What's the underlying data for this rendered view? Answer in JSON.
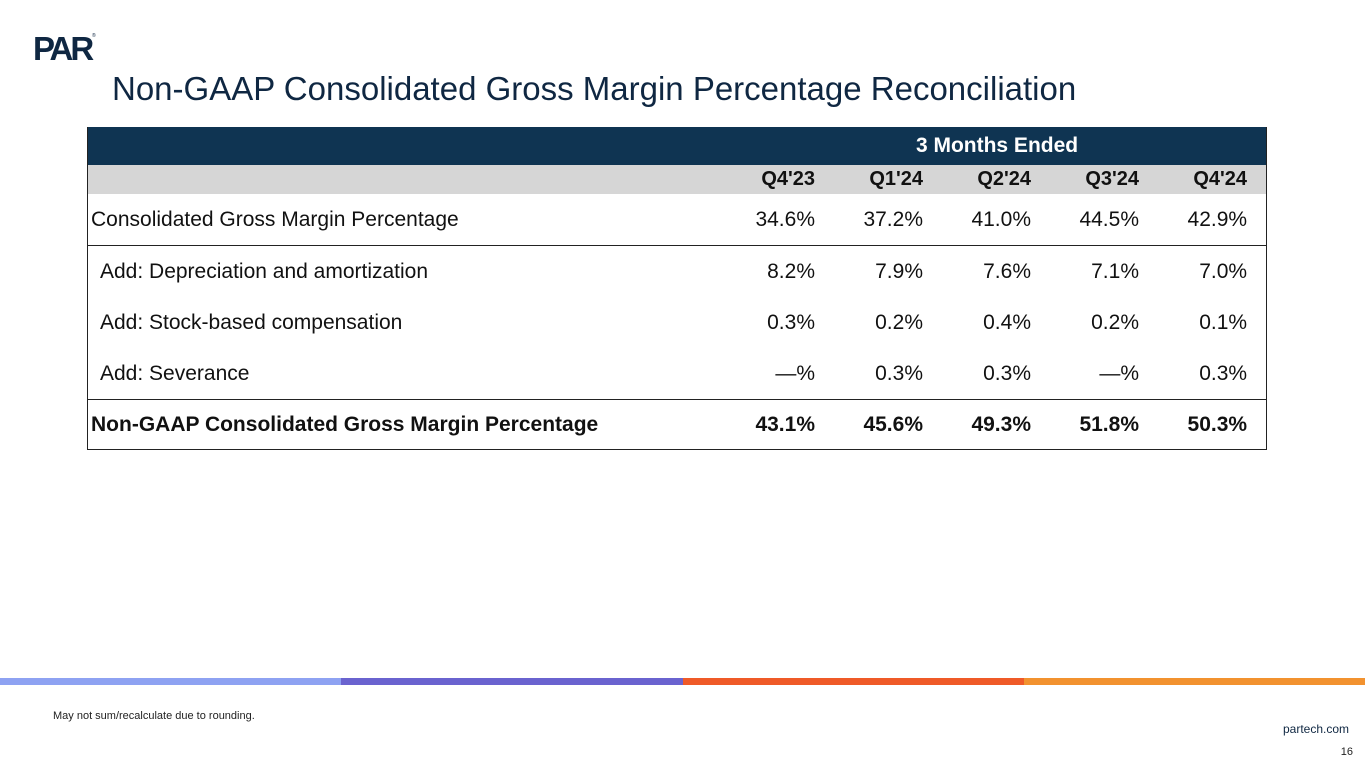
{
  "brand": {
    "logo_text": "PAR",
    "logo_mark": "®",
    "color": "#0f2742"
  },
  "title": "Non-GAAP Consolidated Gross Margin Percentage Reconciliation",
  "table": {
    "band_label": "3 Months Ended",
    "columns": [
      "Q4'23",
      "Q1'24",
      "Q2'24",
      "Q3'24",
      "Q4'24"
    ],
    "rows": [
      {
        "label": "Consolidated Gross Margin Percentage",
        "values": [
          "34.6%",
          "37.2%",
          "41.0%",
          "44.5%",
          "42.9%"
        ]
      },
      {
        "label": "Add: Depreciation and amortization",
        "values": [
          "8.2%",
          "7.9%",
          "7.6%",
          "7.1%",
          "7.0%"
        ]
      },
      {
        "label": "Add: Stock-based compensation",
        "values": [
          "0.3%",
          "0.2%",
          "0.4%",
          "0.2%",
          "0.1%"
        ]
      },
      {
        "label": "Add: Severance",
        "values": [
          "—%",
          "0.3%",
          "0.3%",
          "—%",
          "0.3%"
        ]
      },
      {
        "label": "Non-GAAP Consolidated Gross Margin Percentage",
        "values": [
          "43.1%",
          "45.6%",
          "49.3%",
          "51.8%",
          "50.3%"
        ]
      }
    ],
    "colors": {
      "band": "#0f3452",
      "header": "#d6d6d6"
    }
  },
  "stripe_colors": [
    "#8ea2f2",
    "#6a63cf",
    "#ef5a28",
    "#f2922f"
  ],
  "footnote": "May not sum/recalculate due to rounding.",
  "website": "partech.com",
  "page_number": "16"
}
